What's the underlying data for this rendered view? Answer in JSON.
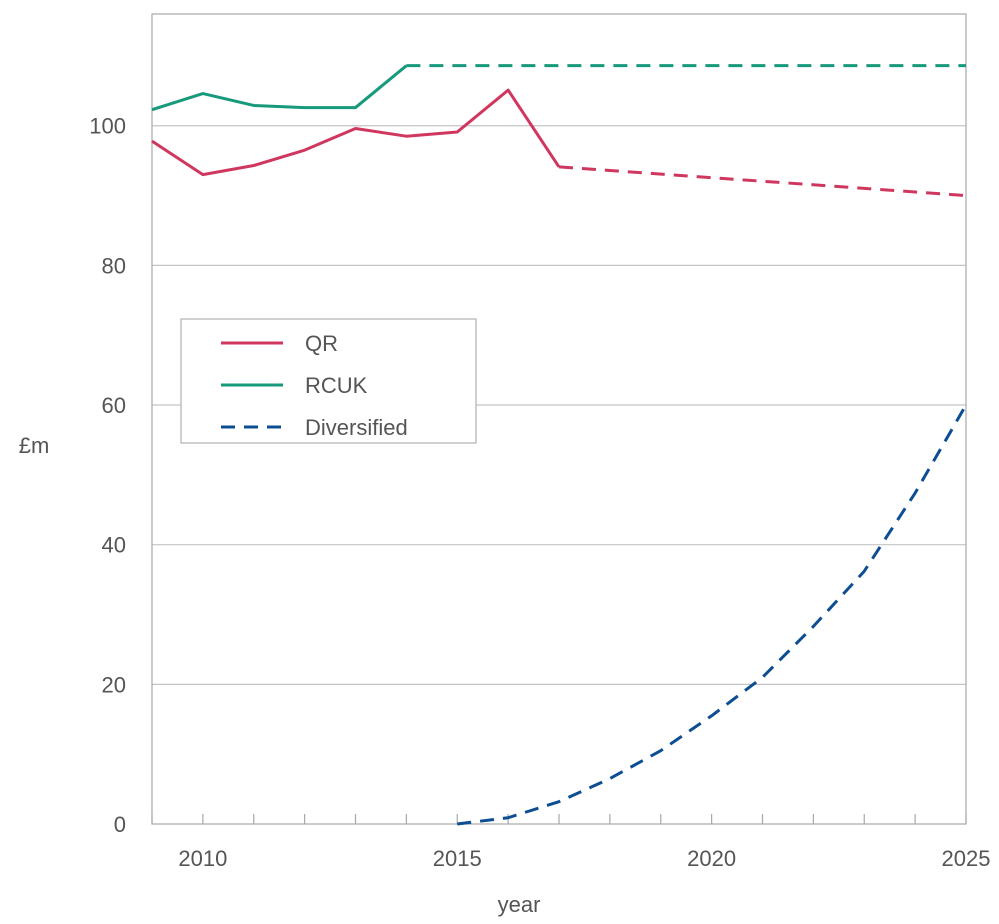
{
  "chart_data": {
    "type": "line",
    "title": "",
    "xlabel": "year",
    "ylabel": "£m",
    "xlim": [
      2009,
      2025
    ],
    "ylim": [
      0,
      116
    ],
    "xticks": [
      2010,
      2015,
      2020,
      2025
    ],
    "xticks_minor": [
      2009,
      2010,
      2011,
      2012,
      2013,
      2014,
      2015,
      2016,
      2017,
      2018,
      2019,
      2020,
      2021,
      2022,
      2023,
      2024,
      2025
    ],
    "yticks": [
      0,
      20,
      40,
      60,
      80,
      100
    ],
    "grid": "horizontal",
    "legend_position": "middle-left",
    "series": [
      {
        "name": "QR",
        "color": "#d0375f",
        "segments": [
          {
            "style": "solid",
            "x": [
              2009,
              2010,
              2011,
              2012,
              2013,
              2014,
              2015,
              2016,
              2017
            ],
            "y": [
              97.8,
              93.0,
              94.3,
              96.5,
              99.6,
              98.5,
              99.1,
              105.1,
              94.1
            ]
          },
          {
            "style": "dashed",
            "x": [
              2017,
              2025
            ],
            "y": [
              94.1,
              90.0
            ]
          }
        ]
      },
      {
        "name": "RCUK",
        "color": "#169a7b",
        "segments": [
          {
            "style": "solid",
            "x": [
              2009,
              2010,
              2011,
              2012,
              2013,
              2014
            ],
            "y": [
              102.3,
              104.6,
              102.9,
              102.6,
              102.6,
              108.6
            ]
          },
          {
            "style": "dashed",
            "x": [
              2014,
              2025
            ],
            "y": [
              108.6,
              108.6
            ]
          }
        ]
      },
      {
        "name": "Diversified",
        "color": "#0d4e93",
        "segments": [
          {
            "style": "dashed",
            "x": [
              2015,
              2016,
              2017,
              2018,
              2019,
              2020,
              2021,
              2022,
              2023,
              2024,
              2025
            ],
            "y": [
              0,
              0.9,
              3.2,
              6.5,
              10.5,
              15.5,
              21.0,
              28.3,
              36.2,
              47.4,
              60.0
            ]
          }
        ]
      }
    ]
  }
}
